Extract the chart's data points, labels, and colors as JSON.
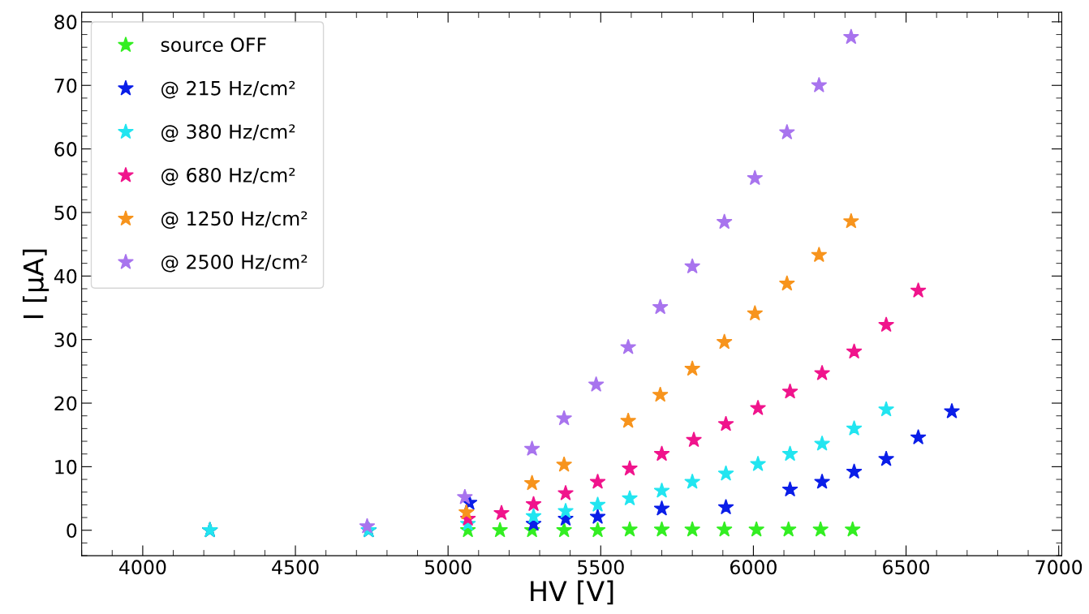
{
  "chart_data": {
    "type": "scatter",
    "xlabel": "HV [V]",
    "ylabel": "I [μA]",
    "marker": "star",
    "legend": "top left",
    "grid": false,
    "xlim": [
      3800,
      7010
    ],
    "xticks": [
      4000,
      4500,
      5000,
      5500,
      6000,
      6500,
      7000
    ],
    "ylim": [
      -4,
      81.5
    ],
    "yticks": [
      0,
      10,
      20,
      30,
      40,
      50,
      60,
      70,
      80
    ],
    "series": [
      {
        "name": "source OFF",
        "color": "#33ee22",
        "x": [
          4220,
          4740,
          5065,
          5170,
          5275,
          5380,
          5490,
          5595,
          5700,
          5800,
          5905,
          6010,
          6115,
          6220,
          6325
        ],
        "values": [
          0,
          0,
          0,
          0,
          0,
          0,
          0,
          0.1,
          0.1,
          0.1,
          0.1,
          0.1,
          0.1,
          0.1,
          0.1
        ]
      },
      {
        "name": "@ 215 Hz/cm²",
        "color": "#0a1ee8",
        "x": [
          4220,
          4740,
          5070,
          5280,
          5385,
          5490,
          5700,
          5910,
          6120,
          6225,
          6330,
          6435,
          6540,
          6650
        ],
        "values": [
          0,
          0,
          4.3,
          1.0,
          1.8,
          2.1,
          3.4,
          3.6,
          6.4,
          7.6,
          9.2,
          11.2,
          14.6,
          18.7
        ]
      },
      {
        "name": "@ 380 Hz/cm²",
        "color": "#22e5f0",
        "x": [
          4220,
          4740,
          5065,
          5280,
          5385,
          5490,
          5595,
          5700,
          5800,
          5910,
          6015,
          6120,
          6225,
          6330,
          6435
        ],
        "values": [
          0,
          0,
          1.0,
          2.2,
          3.0,
          4.0,
          5.0,
          6.2,
          7.6,
          8.9,
          10.4,
          12.0,
          13.6,
          16.0,
          19.0
        ]
      },
      {
        "name": "@ 680 Hz/cm²",
        "color": "#f0148c",
        "x": [
          5065,
          5175,
          5280,
          5385,
          5490,
          5595,
          5700,
          5805,
          5910,
          6015,
          6120,
          6225,
          6330,
          6435,
          6540
        ],
        "values": [
          1.8,
          2.7,
          4.1,
          5.8,
          7.6,
          9.7,
          12.0,
          14.2,
          16.7,
          19.2,
          21.8,
          24.7,
          28.1,
          32.3,
          37.7
        ]
      },
      {
        "name": "@ 1250 Hz/cm²",
        "color": "#f7941d",
        "x": [
          5060,
          5275,
          5380,
          5590,
          5695,
          5800,
          5905,
          6005,
          6110,
          6215,
          6320
        ],
        "values": [
          2.8,
          7.4,
          10.3,
          17.2,
          21.3,
          25.4,
          29.6,
          34.1,
          38.8,
          43.3,
          48.6
        ]
      },
      {
        "name": "@ 2500 Hz/cm²",
        "color": "#a874ee",
        "x": [
          4735,
          5055,
          5275,
          5380,
          5485,
          5590,
          5695,
          5800,
          5905,
          6005,
          6110,
          6215,
          6320
        ],
        "values": [
          0.6,
          5.2,
          12.8,
          17.6,
          22.9,
          28.8,
          35.1,
          41.5,
          48.5,
          55.4,
          62.6,
          70.0,
          77.6
        ]
      }
    ]
  }
}
